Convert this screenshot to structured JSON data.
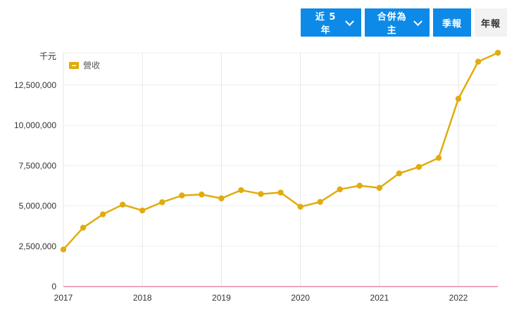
{
  "toolbar": {
    "period_label": "近 5 年",
    "scope_label": "合併為主",
    "quarterly_label": "季報",
    "annual_label": "年報"
  },
  "colors": {
    "series": "#e0ac0e",
    "accent_button": "#0d8ae8",
    "grid": "#e6e6e6",
    "baseline": "#f2a5b9"
  },
  "chart_data": {
    "type": "line",
    "unit_label": "千元",
    "legend": {
      "position": "top-left"
    },
    "grid": true,
    "ylim": [
      0,
      14500000
    ],
    "y_ticks": [
      0,
      2500000,
      5000000,
      7500000,
      10000000,
      12500000
    ],
    "y_tick_labels": [
      "0",
      "2,500,000",
      "5,000,000",
      "7,500,000",
      "10,000,000",
      "12,500,000"
    ],
    "x_tick_labels": [
      "2017",
      "2018",
      "2019",
      "2020",
      "2021",
      "2022"
    ],
    "series": [
      {
        "name": "營收",
        "x": [
          "2017Q1",
          "2017Q2",
          "2017Q3",
          "2017Q4",
          "2018Q1",
          "2018Q2",
          "2018Q3",
          "2018Q4",
          "2019Q1",
          "2019Q2",
          "2019Q3",
          "2019Q4",
          "2020Q1",
          "2020Q2",
          "2020Q3",
          "2020Q4",
          "2021Q1",
          "2021Q2",
          "2021Q3",
          "2021Q4",
          "2022Q1",
          "2022Q2",
          "2022Q3"
        ],
        "values": [
          2300000,
          3650000,
          4480000,
          5080000,
          4720000,
          5230000,
          5650000,
          5710000,
          5470000,
          5980000,
          5740000,
          5830000,
          4950000,
          5250000,
          6030000,
          6260000,
          6120000,
          7020000,
          7420000,
          7980000,
          11650000,
          13950000,
          14500000
        ]
      }
    ]
  }
}
